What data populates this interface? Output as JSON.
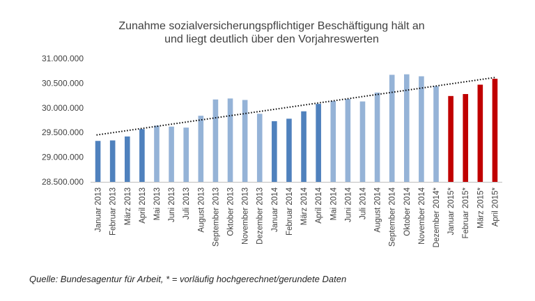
{
  "chart_data": {
    "type": "bar",
    "title_lines": [
      "Zunahme sozialversicherungspflichtiger Beschäftigung hält an",
      "und liegt deutlich über den Vorjahreswerten"
    ],
    "categories": [
      "Januar 2013",
      "Februar 2013",
      "März 2013",
      "April 2013",
      "Mai 2013",
      "Juni 2013",
      "Juli 2013",
      "August 2013",
      "September 2013",
      "Oktober 2013",
      "November 2013",
      "Dezember 2013",
      "Januar 2014",
      "Februar 2014",
      "März 2014",
      "April 2014",
      "Mai 2014",
      "Juni 2014",
      "Juli 2014",
      "August 2014",
      "September 2014",
      "Oktober 2014",
      "November 2014",
      "Dezember 2014*",
      "Januar 2015*",
      "Februar 2015*",
      "März 2015*",
      "April 2015*"
    ],
    "values": [
      29330000,
      29340000,
      29420000,
      29570000,
      29640000,
      29620000,
      29600000,
      29840000,
      30170000,
      30190000,
      30160000,
      29880000,
      29730000,
      29780000,
      29930000,
      30080000,
      30140000,
      30180000,
      30130000,
      30310000,
      30670000,
      30680000,
      30640000,
      30440000,
      30240000,
      30280000,
      30470000,
      30590000
    ],
    "bar_groups": [
      "dark-blue",
      "dark-blue",
      "dark-blue",
      "dark-blue",
      "light-blue",
      "light-blue",
      "light-blue",
      "light-blue",
      "light-blue",
      "light-blue",
      "light-blue",
      "light-blue",
      "dark-blue",
      "dark-blue",
      "dark-blue",
      "dark-blue",
      "light-blue",
      "light-blue",
      "light-blue",
      "light-blue",
      "light-blue",
      "light-blue",
      "light-blue",
      "light-blue",
      "red",
      "red",
      "red",
      "red"
    ],
    "colors": {
      "dark-blue": "#4f81bd",
      "light-blue": "#95b3d7",
      "red": "#c00000",
      "trendline": "#000000",
      "text": "#404040"
    },
    "trendline": {
      "style": "dotted",
      "start": 29450000,
      "end": 30620000
    },
    "ylim": [
      28500000,
      31000000
    ],
    "yticks": [
      28500000,
      29000000,
      29500000,
      30000000,
      30500000,
      31000000
    ],
    "ytick_labels": [
      "28.500.000",
      "29.000.000",
      "29.500.000",
      "30.000.000",
      "30.500.000",
      "31.000.000"
    ],
    "grid": false,
    "legend": "none",
    "xlabel": "",
    "ylabel": ""
  },
  "footer": {
    "source": "Quelle: Bundesagentur für Arbeit, * = vorläufig hochgerechnet/gerundete Daten"
  }
}
